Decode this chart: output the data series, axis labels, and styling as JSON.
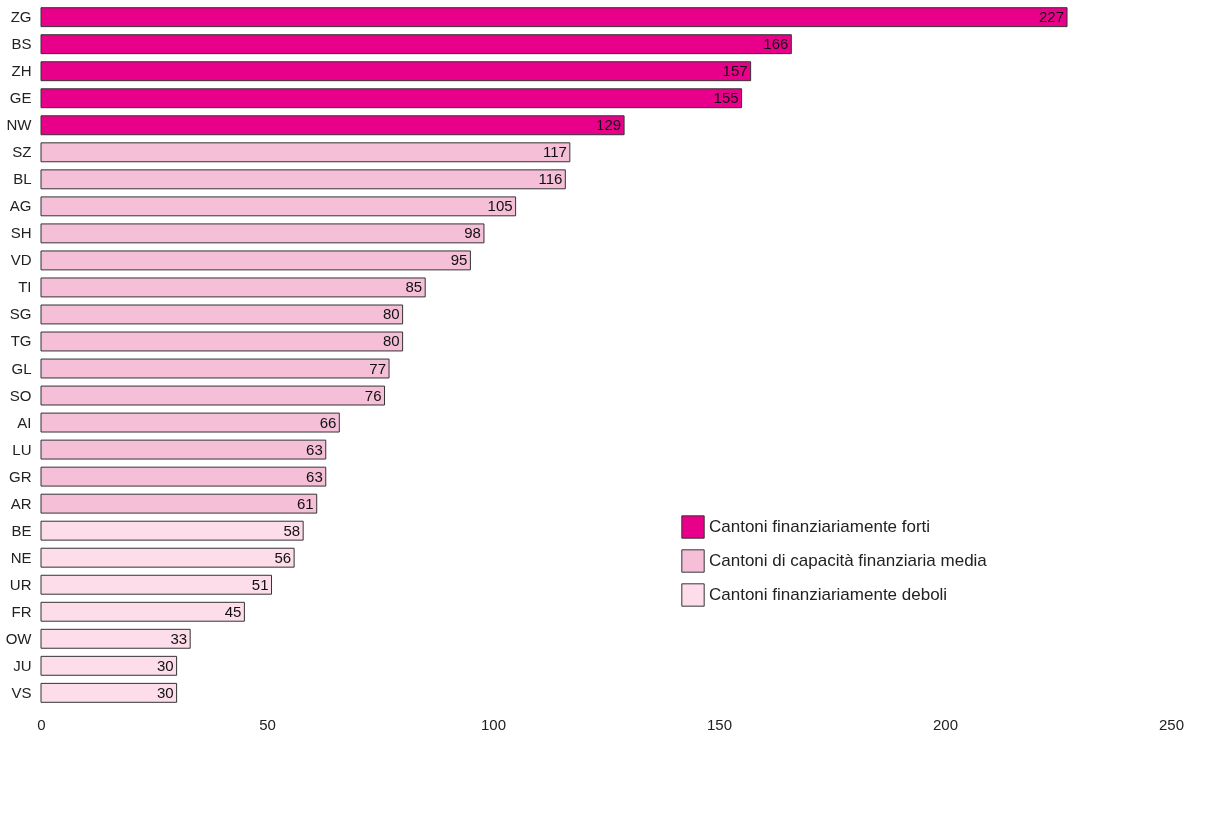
{
  "chart_data": {
    "type": "bar",
    "orientation": "horizontal",
    "categories": [
      "ZG",
      "BS",
      "ZH",
      "GE",
      "NW",
      "SZ",
      "BL",
      "AG",
      "SH",
      "VD",
      "TI",
      "SG",
      "TG",
      "GL",
      "SO",
      "AI",
      "LU",
      "GR",
      "AR",
      "BE",
      "NE",
      "UR",
      "FR",
      "OW",
      "JU",
      "VS"
    ],
    "series": [
      {
        "name": "Cantoni finanziariamente forti",
        "color": "#e8008a",
        "values": [
          227,
          166,
          157,
          155,
          129,
          null,
          null,
          null,
          null,
          null,
          null,
          null,
          null,
          null,
          null,
          null,
          null,
          null,
          null,
          null,
          null,
          null,
          null,
          null,
          null,
          null
        ]
      },
      {
        "name": "Cantoni di capacità finanziaria media",
        "color": "#f5bfd7",
        "values": [
          null,
          null,
          null,
          null,
          null,
          117,
          116,
          105,
          98,
          95,
          85,
          80,
          80,
          77,
          76,
          66,
          63,
          63,
          61,
          null,
          null,
          null,
          null,
          null,
          null,
          null
        ]
      },
      {
        "name": "Cantoni finanziariamente deboli",
        "color": "#fcdde9",
        "values": [
          null,
          null,
          null,
          null,
          null,
          null,
          null,
          null,
          null,
          null,
          null,
          null,
          null,
          null,
          null,
          null,
          null,
          null,
          null,
          58,
          56,
          51,
          45,
          33,
          30,
          30
        ]
      }
    ],
    "xlim": [
      0,
      250
    ],
    "xticks": [
      0,
      50,
      100,
      150,
      200,
      250
    ],
    "data_labels": true,
    "grid": false,
    "legend": "bottom right"
  }
}
